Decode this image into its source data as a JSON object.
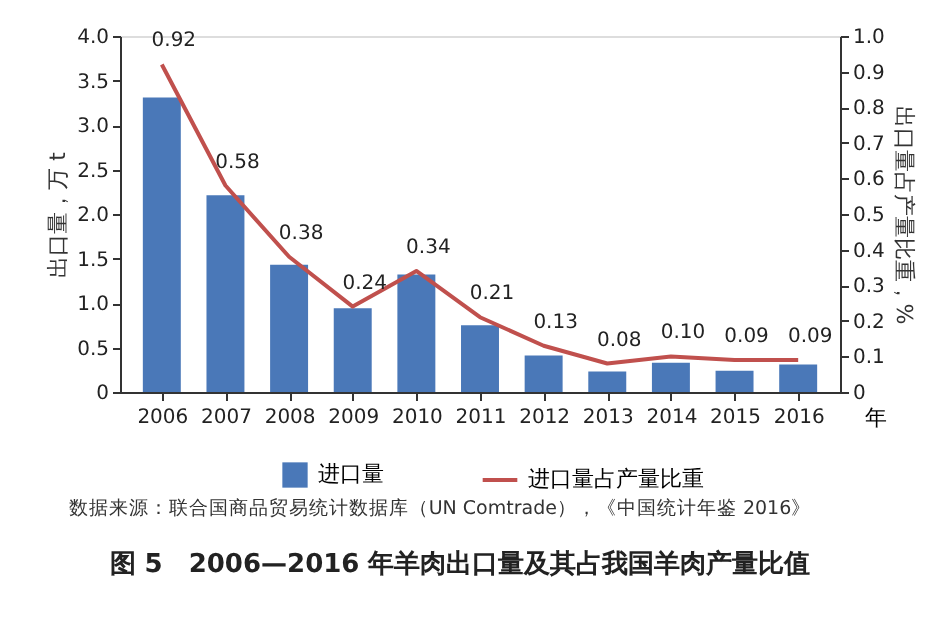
{
  "chart_data": {
    "type": "bar",
    "title": "图 5　2006—2016 年羊肉出口量及其占我国羊肉产量比值",
    "annotations": [
      "数据来源：联合国商品贸易统计数据库（UN Comtrade），《中国统计年鉴 2016》"
    ],
    "xlabel": "年",
    "ylabel": "出口量，万 t",
    "y2label": "出口量占产量比重，%",
    "categories": [
      "2006",
      "2007",
      "2008",
      "2009",
      "2010",
      "2011",
      "2012",
      "2013",
      "2014",
      "2015",
      "2016"
    ],
    "series": [
      {
        "name": "进口量",
        "color": "#4a78b8",
        "values": [
          3.31,
          2.21,
          1.43,
          0.94,
          1.32,
          0.75,
          0.41,
          0.23,
          0.33,
          0.24,
          0.31
        ]
      },
      {
        "name": "进口量占产量比重",
        "type": "line",
        "axis": "y2",
        "color": "#c0504d",
        "line_style": "solid",
        "values": [
          0.92,
          0.58,
          0.38,
          0.24,
          0.34,
          0.21,
          0.13,
          0.08,
          0.1,
          0.09,
          0.09
        ],
        "value_labels": [
          "0.92",
          "0.58",
          "0.38",
          "0.24",
          "0.34",
          "0.21",
          "0.13",
          "0.08",
          "0.10",
          "0.09",
          "0.09"
        ]
      }
    ],
    "ylim": [
      0,
      4
    ],
    "yticks": [
      0,
      0.5,
      {
        "value": 1,
        "label": "1.0"
      },
      1.5,
      {
        "value": 2,
        "label": "2.0"
      },
      2.5,
      {
        "value": 3,
        "label": "3.0"
      },
      3.5,
      {
        "value": 4,
        "label": "4.0"
      }
    ],
    "y2lim": [
      0,
      1
    ],
    "y2ticks": [
      0,
      0.1,
      0.2,
      0.3,
      0.4,
      0.5,
      0.6,
      0.7,
      0.8,
      0.9,
      {
        "value": 1,
        "label": "1.0"
      }
    ],
    "legend": "bottom",
    "grid": false
  }
}
